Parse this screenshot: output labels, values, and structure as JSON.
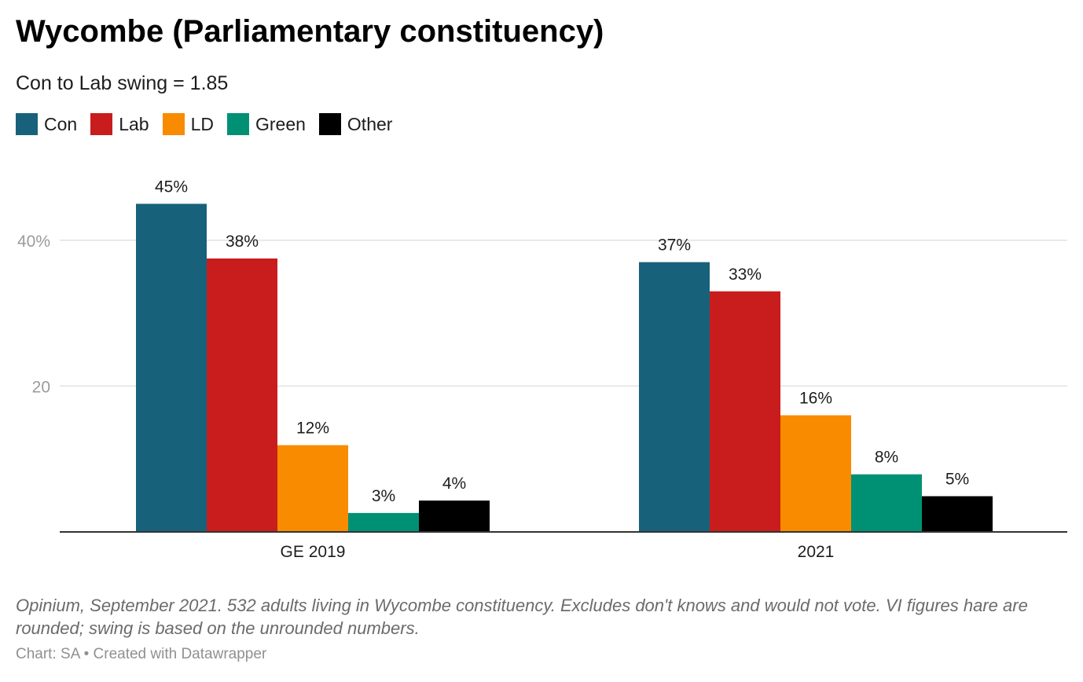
{
  "header": {
    "title": "Wycombe (Parliamentary constituency)",
    "subtitle": "Con to Lab swing = 1.85"
  },
  "legend": {
    "items": [
      {
        "label": "Con",
        "color": "#18617b"
      },
      {
        "label": "Lab",
        "color": "#c91d1d"
      },
      {
        "label": "LD",
        "color": "#f88b00"
      },
      {
        "label": "Green",
        "color": "#009175"
      },
      {
        "label": "Other",
        "color": "#000000"
      }
    ]
  },
  "chart_data": {
    "type": "bar",
    "title": "Wycombe (Parliamentary constituency)",
    "subtitle": "Con to Lab swing = 1.85",
    "categories": [
      "GE 2019",
      "2021"
    ],
    "series": [
      {
        "name": "Con",
        "color": "#18617b",
        "values": [
          45,
          37
        ],
        "labels": [
          "45%",
          "37%"
        ]
      },
      {
        "name": "Lab",
        "color": "#c91d1d",
        "values": [
          37.5,
          33
        ],
        "labels": [
          "38%",
          "33%"
        ]
      },
      {
        "name": "LD",
        "color": "#f88b00",
        "values": [
          11.9,
          16
        ],
        "labels": [
          "12%",
          "16%"
        ]
      },
      {
        "name": "Green",
        "color": "#009175",
        "values": [
          2.6,
          7.9
        ],
        "labels": [
          "3%",
          "8%"
        ]
      },
      {
        "name": "Other",
        "color": "#000000",
        "values": [
          4.3,
          4.9
        ],
        "labels": [
          "4%",
          "5%"
        ]
      }
    ],
    "yticks": [
      {
        "value": 20,
        "label": "20"
      },
      {
        "value": 40,
        "label": "40%"
      }
    ],
    "ylim": [
      0,
      50
    ],
    "xlabel": "",
    "ylabel": "",
    "grid": true,
    "legend_position": "top-left"
  },
  "footer": {
    "notes": "Opinium, September 2021. 532 adults living in Wycombe constituency. Excludes don't knows and would not vote. VI figures hare are rounded; swing is based on the unrounded numbers.",
    "byline": "Chart: SA • Created with Datawrapper"
  }
}
